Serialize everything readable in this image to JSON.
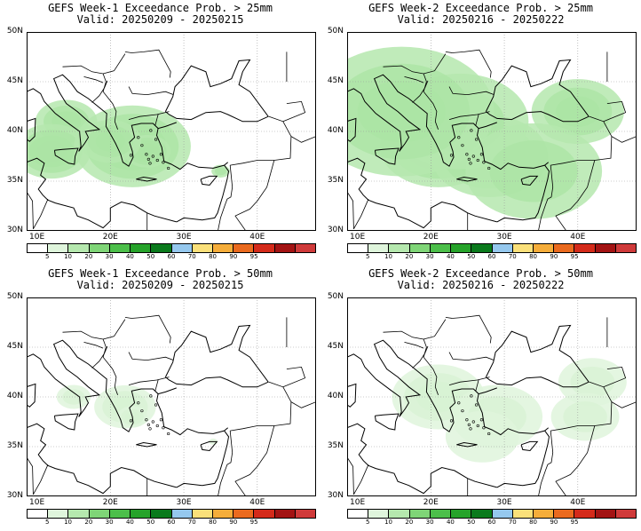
{
  "colors": {
    "levels": [
      "#ffffff",
      "#dff5dc",
      "#b5e8ae",
      "#7fd577",
      "#4cbf4a",
      "#26a32a",
      "#0a7a1c",
      "#95c8ee",
      "#fae07a",
      "#f5ad3a",
      "#ea6a1e",
      "#d42a1a",
      "#a31313",
      "#cf3a3a"
    ],
    "coast": "#000000",
    "grid": "#9a9a9a"
  },
  "colorbar_labels": [
    "5",
    "10",
    "20",
    "30",
    "40",
    "50",
    "60",
    "70",
    "80",
    "90",
    "95"
  ],
  "lat_labels": [
    "50N",
    "45N",
    "40N",
    "35N",
    "30N"
  ],
  "lon_labels": [
    "10E",
    "20E",
    "30E",
    "40E"
  ],
  "panels": [
    {
      "title": "GEFS Week-1 Exceedance Prob. > 25mm",
      "valid": "Valid: 20250209 - 20250215",
      "fields": [
        [
          14,
          41,
          2,
          3
        ],
        [
          12,
          38,
          2,
          4
        ],
        [
          23,
          38.5,
          3,
          4
        ],
        [
          25,
          38,
          1,
          5
        ],
        [
          20,
          39,
          2,
          3
        ],
        [
          35,
          36,
          0.8,
          2
        ]
      ]
    },
    {
      "title": "GEFS Week-2 Exceedance Prob. > 25mm",
      "valid": "Valid: 20250216 - 20250222",
      "fields": [
        [
          21,
          38.5,
          3,
          4
        ],
        [
          28,
          37.5,
          3,
          4
        ],
        [
          40,
          42,
          3,
          3
        ],
        [
          24,
          41,
          6,
          2
        ],
        [
          34,
          36,
          6,
          2
        ],
        [
          16,
          42,
          6,
          3
        ]
      ]
    },
    {
      "title": "GEFS Week-1 Exceedance Prob. > 50mm",
      "valid": "Valid: 20250209 - 20250215",
      "fields": [
        [
          15,
          40,
          1.5,
          2
        ],
        [
          22,
          39,
          2,
          3
        ],
        [
          23,
          38,
          1,
          3
        ],
        [
          34,
          35.5,
          0.6,
          1
        ]
      ]
    },
    {
      "title": "GEFS Week-2 Exceedance Prob. > 50mm",
      "valid": "Valid: 20250216 - 20250222",
      "fields": [
        [
          21,
          40,
          3,
          3
        ],
        [
          29,
          38,
          4,
          2
        ],
        [
          42,
          41.5,
          3,
          2
        ],
        [
          41,
          38,
          3,
          2
        ],
        [
          27,
          36,
          5,
          1
        ]
      ]
    }
  ]
}
